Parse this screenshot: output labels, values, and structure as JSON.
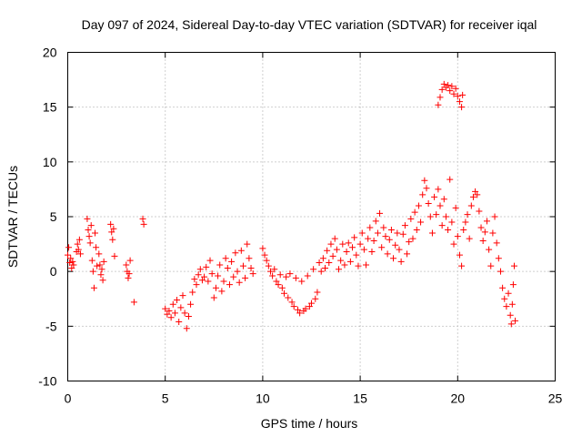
{
  "chart_data": {
    "type": "scatter",
    "title": "Day 097 of 2024, Sidereal Day-to-day VTEC variation (SDTVAR) for receiver iqal",
    "xlabel": "GPS time / hours",
    "ylabel": "SDTVAR / TECUs",
    "xlim": [
      0,
      25
    ],
    "ylim": [
      -10,
      20
    ],
    "x_ticks": [
      0,
      5,
      10,
      15,
      20,
      25
    ],
    "x_tick_labels": [
      "0",
      "5",
      "10",
      "15",
      "20",
      "25"
    ],
    "y_ticks": [
      -10,
      -5,
      0,
      5,
      10,
      15,
      20
    ],
    "y_tick_labels": [
      "-10",
      "-5",
      "0",
      "5",
      "10",
      "15",
      "20"
    ],
    "grid": true,
    "marker": "+",
    "color": "#ff0000",
    "series": [
      {
        "name": "SDTVAR",
        "points": [
          [
            0.0,
            1.5
          ],
          [
            0.05,
            2.2
          ],
          [
            0.1,
            0.8
          ],
          [
            0.15,
            1.2
          ],
          [
            0.2,
            0.3
          ],
          [
            0.25,
            0.9
          ],
          [
            0.3,
            0.6
          ],
          [
            0.45,
            1.8
          ],
          [
            0.5,
            2.5
          ],
          [
            0.55,
            2.0
          ],
          [
            0.6,
            2.9
          ],
          [
            0.65,
            1.6
          ],
          [
            1.0,
            4.8
          ],
          [
            1.05,
            3.8
          ],
          [
            1.1,
            3.2
          ],
          [
            1.15,
            2.6
          ],
          [
            1.2,
            4.2
          ],
          [
            1.25,
            1.0
          ],
          [
            1.3,
            0.0
          ],
          [
            1.35,
            -1.5
          ],
          [
            1.4,
            3.5
          ],
          [
            1.45,
            2.2
          ],
          [
            1.5,
            0.5
          ],
          [
            1.6,
            1.6
          ],
          [
            1.65,
            0.6
          ],
          [
            1.7,
            -0.3
          ],
          [
            1.75,
            0.2
          ],
          [
            1.8,
            -0.8
          ],
          [
            1.85,
            0.9
          ],
          [
            2.2,
            4.3
          ],
          [
            2.25,
            3.6
          ],
          [
            2.3,
            2.9
          ],
          [
            2.35,
            3.9
          ],
          [
            2.4,
            1.4
          ],
          [
            3.0,
            0.6
          ],
          [
            3.05,
            0.0
          ],
          [
            3.1,
            -0.6
          ],
          [
            3.15,
            -0.2
          ],
          [
            3.2,
            1.0
          ],
          [
            3.4,
            -2.8
          ],
          [
            3.85,
            4.8
          ],
          [
            3.9,
            4.3
          ],
          [
            5.0,
            -3.4
          ],
          [
            5.1,
            -3.9
          ],
          [
            5.2,
            -3.6
          ],
          [
            5.3,
            -4.2
          ],
          [
            5.4,
            -3.0
          ],
          [
            5.5,
            -3.8
          ],
          [
            5.6,
            -2.6
          ],
          [
            5.7,
            -4.6
          ],
          [
            5.8,
            -3.3
          ],
          [
            5.9,
            -2.2
          ],
          [
            6.0,
            -3.8
          ],
          [
            6.1,
            -5.2
          ],
          [
            6.2,
            -4.1
          ],
          [
            6.3,
            -3.0
          ],
          [
            6.4,
            -1.9
          ],
          [
            6.5,
            -0.7
          ],
          [
            6.6,
            -1.2
          ],
          [
            6.7,
            -0.3
          ],
          [
            6.8,
            0.2
          ],
          [
            6.9,
            -0.8
          ],
          [
            7.0,
            -0.5
          ],
          [
            7.1,
            0.4
          ],
          [
            7.2,
            -0.9
          ],
          [
            7.3,
            1.0
          ],
          [
            7.4,
            -0.2
          ],
          [
            7.5,
            -2.4
          ],
          [
            7.6,
            -1.5
          ],
          [
            7.7,
            -0.4
          ],
          [
            7.8,
            0.6
          ],
          [
            7.9,
            -1.8
          ],
          [
            8.0,
            -0.9
          ],
          [
            8.1,
            1.2
          ],
          [
            8.2,
            0.3
          ],
          [
            8.3,
            -1.2
          ],
          [
            8.4,
            0.9
          ],
          [
            8.5,
            -0.5
          ],
          [
            8.6,
            1.7
          ],
          [
            8.7,
            0.0
          ],
          [
            8.8,
            -1.0
          ],
          [
            8.9,
            1.9
          ],
          [
            9.0,
            0.5
          ],
          [
            9.1,
            -0.6
          ],
          [
            9.2,
            2.5
          ],
          [
            9.3,
            1.2
          ],
          [
            9.4,
            0.3
          ],
          [
            9.5,
            -0.2
          ],
          [
            10.0,
            2.1
          ],
          [
            10.1,
            1.5
          ],
          [
            10.2,
            1.0
          ],
          [
            10.3,
            0.5
          ],
          [
            10.4,
            0.0
          ],
          [
            10.5,
            -0.4
          ],
          [
            10.6,
            0.2
          ],
          [
            10.7,
            -0.9
          ],
          [
            10.8,
            -1.2
          ],
          [
            10.9,
            -0.3
          ],
          [
            11.0,
            -1.5
          ],
          [
            11.1,
            -2.0
          ],
          [
            11.2,
            -0.5
          ],
          [
            11.3,
            -2.4
          ],
          [
            11.4,
            -0.2
          ],
          [
            11.5,
            -2.8
          ],
          [
            11.6,
            -3.2
          ],
          [
            11.7,
            -0.6
          ],
          [
            11.8,
            -3.5
          ],
          [
            11.9,
            -3.8
          ],
          [
            12.0,
            -0.9
          ],
          [
            12.1,
            -3.6
          ],
          [
            12.2,
            -3.4
          ],
          [
            12.3,
            -0.4
          ],
          [
            12.4,
            -3.2
          ],
          [
            12.5,
            -2.9
          ],
          [
            12.6,
            0.2
          ],
          [
            12.7,
            -2.5
          ],
          [
            12.8,
            -1.9
          ],
          [
            12.9,
            0.8
          ],
          [
            13.0,
            0.0
          ],
          [
            13.1,
            1.2
          ],
          [
            13.2,
            0.3
          ],
          [
            13.3,
            1.9
          ],
          [
            13.4,
            0.8
          ],
          [
            13.5,
            2.5
          ],
          [
            13.6,
            1.4
          ],
          [
            13.7,
            3.0
          ],
          [
            13.8,
            2.0
          ],
          [
            13.9,
            0.2
          ],
          [
            14.0,
            1.0
          ],
          [
            14.1,
            2.5
          ],
          [
            14.2,
            0.6
          ],
          [
            14.3,
            1.8
          ],
          [
            14.4,
            2.6
          ],
          [
            14.5,
            0.9
          ],
          [
            14.6,
            2.2
          ],
          [
            14.7,
            3.1
          ],
          [
            14.8,
            1.5
          ],
          [
            14.9,
            0.5
          ],
          [
            15.0,
            2.5
          ],
          [
            15.1,
            3.5
          ],
          [
            15.2,
            2.0
          ],
          [
            15.3,
            0.6
          ],
          [
            15.4,
            3.0
          ],
          [
            15.5,
            4.0
          ],
          [
            15.6,
            1.8
          ],
          [
            15.7,
            2.8
          ],
          [
            15.8,
            4.6
          ],
          [
            15.9,
            3.5
          ],
          [
            16.0,
            5.3
          ],
          [
            16.1,
            2.2
          ],
          [
            16.2,
            4.0
          ],
          [
            16.3,
            3.2
          ],
          [
            16.4,
            1.6
          ],
          [
            16.5,
            2.9
          ],
          [
            16.6,
            3.8
          ],
          [
            16.7,
            1.2
          ],
          [
            16.8,
            2.4
          ],
          [
            16.9,
            3.5
          ],
          [
            17.0,
            2.0
          ],
          [
            17.1,
            0.9
          ],
          [
            17.2,
            3.4
          ],
          [
            17.3,
            4.2
          ],
          [
            17.4,
            1.6
          ],
          [
            17.5,
            2.7
          ],
          [
            17.6,
            4.8
          ],
          [
            17.7,
            3.0
          ],
          [
            17.8,
            5.4
          ],
          [
            17.9,
            3.8
          ],
          [
            18.0,
            6.0
          ],
          [
            18.1,
            4.5
          ],
          [
            18.2,
            7.0
          ],
          [
            18.3,
            8.3
          ],
          [
            18.4,
            7.6
          ],
          [
            18.5,
            6.2
          ],
          [
            18.6,
            5.0
          ],
          [
            18.7,
            3.5
          ],
          [
            18.8,
            6.8
          ],
          [
            18.9,
            5.2
          ],
          [
            19.0,
            7.5
          ],
          [
            19.1,
            6.0
          ],
          [
            19.2,
            4.2
          ],
          [
            19.3,
            6.6
          ],
          [
            19.4,
            5.0
          ],
          [
            19.5,
            3.8
          ],
          [
            19.6,
            8.4
          ],
          [
            19.7,
            4.5
          ],
          [
            19.8,
            2.5
          ],
          [
            19.9,
            5.8
          ],
          [
            20.0,
            3.2
          ],
          [
            20.1,
            1.5
          ],
          [
            20.2,
            0.5
          ],
          [
            20.3,
            3.8
          ],
          [
            20.4,
            4.5
          ],
          [
            20.5,
            5.2
          ],
          [
            20.6,
            3.0
          ],
          [
            20.7,
            6.0
          ],
          [
            20.8,
            6.8
          ],
          [
            20.9,
            7.3
          ],
          [
            21.0,
            7.0
          ],
          [
            21.1,
            5.5
          ],
          [
            21.2,
            4.0
          ],
          [
            21.3,
            2.8
          ],
          [
            21.4,
            3.6
          ],
          [
            21.5,
            4.6
          ],
          [
            21.6,
            2.0
          ],
          [
            21.7,
            0.5
          ],
          [
            21.8,
            3.5
          ],
          [
            21.9,
            5.0
          ],
          [
            22.0,
            2.6
          ],
          [
            22.1,
            1.2
          ],
          [
            22.2,
            0.0
          ],
          [
            22.3,
            -1.5
          ],
          [
            22.4,
            -2.5
          ],
          [
            22.5,
            -3.2
          ],
          [
            22.6,
            -2.0
          ],
          [
            22.7,
            -4.0
          ],
          [
            22.75,
            -4.8
          ],
          [
            22.8,
            -3.0
          ],
          [
            22.85,
            -1.2
          ],
          [
            22.9,
            0.5
          ],
          [
            22.95,
            -4.5
          ],
          [
            19.0,
            15.2
          ],
          [
            19.1,
            15.9
          ],
          [
            19.2,
            16.6
          ],
          [
            19.3,
            17.1
          ],
          [
            19.4,
            16.8
          ],
          [
            19.5,
            17.0
          ],
          [
            19.6,
            16.5
          ],
          [
            19.7,
            16.9
          ],
          [
            19.8,
            16.2
          ],
          [
            19.9,
            16.7
          ],
          [
            20.0,
            16.0
          ],
          [
            20.1,
            15.5
          ],
          [
            20.2,
            15.0
          ],
          [
            20.25,
            16.1
          ]
        ]
      }
    ]
  }
}
